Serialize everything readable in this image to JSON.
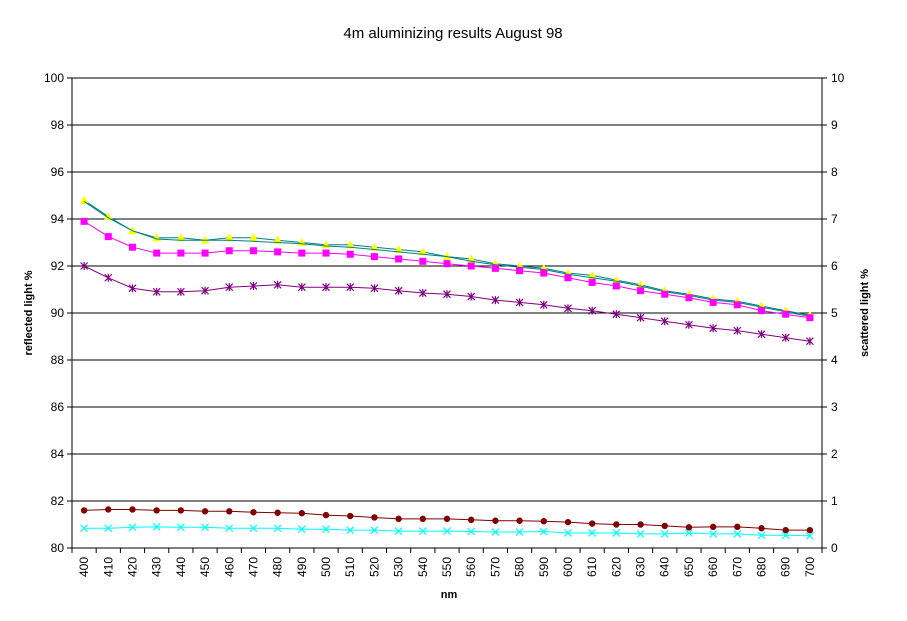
{
  "chart_data": {
    "type": "line",
    "title": "4m aluminizing results August 98",
    "xlabel": "nm",
    "ylabel_left": "reflected light %",
    "ylabel_right": "scattered light %",
    "x": [
      400,
      410,
      420,
      430,
      440,
      450,
      460,
      470,
      480,
      490,
      500,
      510,
      520,
      530,
      540,
      550,
      560,
      570,
      580,
      590,
      600,
      610,
      620,
      630,
      640,
      650,
      660,
      670,
      680,
      690,
      700
    ],
    "ylim_left": [
      80,
      100
    ],
    "yticks_left": [
      80,
      82,
      84,
      86,
      88,
      90,
      92,
      94,
      96,
      98,
      100
    ],
    "ylim_right": [
      0,
      10
    ],
    "yticks_right": [
      0,
      1,
      2,
      3,
      4,
      5,
      6,
      7,
      8,
      9,
      10
    ],
    "grid": true,
    "legend": "none",
    "series": [
      {
        "axis": "left",
        "color": "#ffff00",
        "line_color": "#008080",
        "marker": "triangle",
        "values": [
          94.8,
          94.1,
          93.5,
          93.2,
          93.2,
          93.1,
          93.2,
          93.2,
          93.1,
          93.0,
          92.9,
          92.9,
          92.8,
          92.7,
          92.6,
          92.4,
          92.3,
          92.1,
          92.0,
          91.9,
          91.7,
          91.6,
          91.4,
          91.2,
          90.95,
          90.8,
          90.6,
          90.5,
          90.3,
          90.1,
          89.9
        ]
      },
      {
        "axis": "left",
        "color": "#008080",
        "line_color": "#008080",
        "marker": "none",
        "values": [
          94.75,
          94.05,
          93.5,
          93.15,
          93.1,
          93.1,
          93.1,
          93.05,
          93.0,
          92.95,
          92.85,
          92.8,
          92.7,
          92.6,
          92.5,
          92.4,
          92.2,
          92.05,
          91.95,
          91.85,
          91.65,
          91.5,
          91.35,
          91.15,
          90.9,
          90.75,
          90.55,
          90.45,
          90.25,
          90.05,
          89.85
        ]
      },
      {
        "axis": "left",
        "color": "#ff00ff",
        "line_color": "#ff00ff",
        "marker": "square",
        "values": [
          93.9,
          93.25,
          92.8,
          92.55,
          92.55,
          92.55,
          92.65,
          92.65,
          92.6,
          92.55,
          92.55,
          92.5,
          92.4,
          92.3,
          92.2,
          92.1,
          92.0,
          91.9,
          91.8,
          91.7,
          91.5,
          91.3,
          91.15,
          90.95,
          90.8,
          90.65,
          90.45,
          90.35,
          90.1,
          89.95,
          89.8
        ]
      },
      {
        "axis": "left",
        "color": "#800080",
        "line_color": "#800080",
        "marker": "asterisk",
        "values": [
          92.0,
          91.5,
          91.05,
          90.9,
          90.9,
          90.95,
          91.1,
          91.15,
          91.2,
          91.1,
          91.1,
          91.1,
          91.05,
          90.95,
          90.85,
          90.8,
          90.7,
          90.55,
          90.45,
          90.35,
          90.2,
          90.1,
          89.95,
          89.8,
          89.65,
          89.5,
          89.35,
          89.25,
          89.1,
          88.95,
          88.8
        ]
      },
      {
        "axis": "right",
        "color": "#800000",
        "line_color": "#800000",
        "marker": "circle",
        "values": [
          0.8,
          0.82,
          0.82,
          0.8,
          0.8,
          0.78,
          0.78,
          0.76,
          0.75,
          0.74,
          0.7,
          0.68,
          0.65,
          0.62,
          0.62,
          0.62,
          0.6,
          0.58,
          0.58,
          0.57,
          0.55,
          0.52,
          0.5,
          0.5,
          0.47,
          0.44,
          0.45,
          0.45,
          0.42,
          0.38,
          0.38
        ]
      },
      {
        "axis": "right",
        "color": "#00ffff",
        "line_color": "#00ffff",
        "marker": "x",
        "values": [
          0.42,
          0.42,
          0.44,
          0.45,
          0.44,
          0.44,
          0.42,
          0.42,
          0.42,
          0.4,
          0.4,
          0.38,
          0.38,
          0.36,
          0.36,
          0.36,
          0.35,
          0.34,
          0.34,
          0.35,
          0.32,
          0.32,
          0.32,
          0.3,
          0.3,
          0.32,
          0.3,
          0.3,
          0.27,
          0.27,
          0.26
        ]
      }
    ]
  }
}
